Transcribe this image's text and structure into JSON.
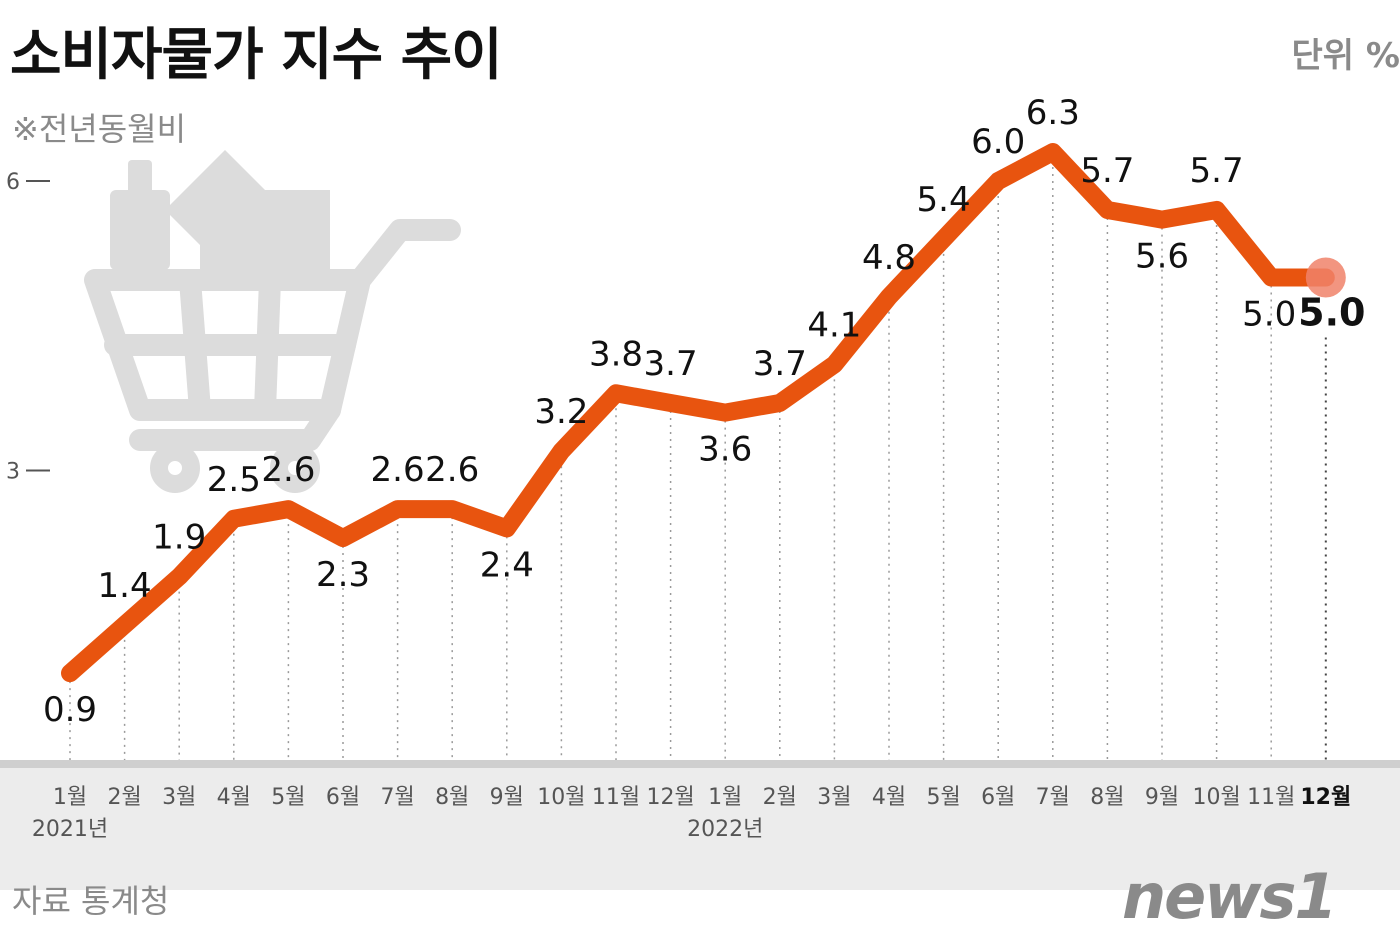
{
  "header": {
    "title": "소비자물가 지수 추이",
    "subtitle": "※전년동월비",
    "unit": "단위 %"
  },
  "footer": {
    "source": "자료 통계청",
    "brand": "news1"
  },
  "decoration": {
    "icon": "shopping-cart-icon",
    "icon_color": "#dcdcdc"
  },
  "colors": {
    "line": "#e8540f",
    "highlight_marker": "#f0826a",
    "text": "#111111",
    "muted": "#8a8a8a"
  },
  "chart_data": {
    "type": "line",
    "x": [
      "1월",
      "2월",
      "3월",
      "4월",
      "5월",
      "6월",
      "7월",
      "8월",
      "9월",
      "10월",
      "11월",
      "12월",
      "1월",
      "2월",
      "3월",
      "4월",
      "5월",
      "6월",
      "7월",
      "8월",
      "9월",
      "10월",
      "11월",
      "12월"
    ],
    "year_labels": [
      {
        "label": "2021년",
        "index": 0
      },
      {
        "label": "2022년",
        "index": 12
      }
    ],
    "series": [
      {
        "values": [
          0.9,
          1.4,
          1.9,
          2.5,
          2.6,
          2.3,
          2.6,
          2.6,
          2.4,
          3.2,
          3.8,
          3.7,
          3.6,
          3.7,
          4.1,
          4.8,
          5.4,
          6.0,
          6.3,
          5.7,
          5.6,
          5.7,
          5.0,
          5.0
        ]
      }
    ],
    "data_labels": [
      "0.9",
      "1.4",
      "1.9",
      "2.5",
      "2.6",
      "2.3",
      "2.6",
      "2.6",
      "2.4",
      "3.2",
      "3.8",
      "3.7",
      "3.6",
      "3.7",
      "4.1",
      "4.8",
      "5.4",
      "6.0",
      "6.3",
      "5.7",
      "5.6",
      "5.7",
      "5.0",
      "5.0"
    ],
    "y_ticks": [
      "3",
      "6"
    ],
    "y_tick_values": [
      3,
      6
    ],
    "ylim": [
      0,
      6.3
    ],
    "highlight_index": 23,
    "grid": "dotted vertical",
    "legend": "none"
  }
}
